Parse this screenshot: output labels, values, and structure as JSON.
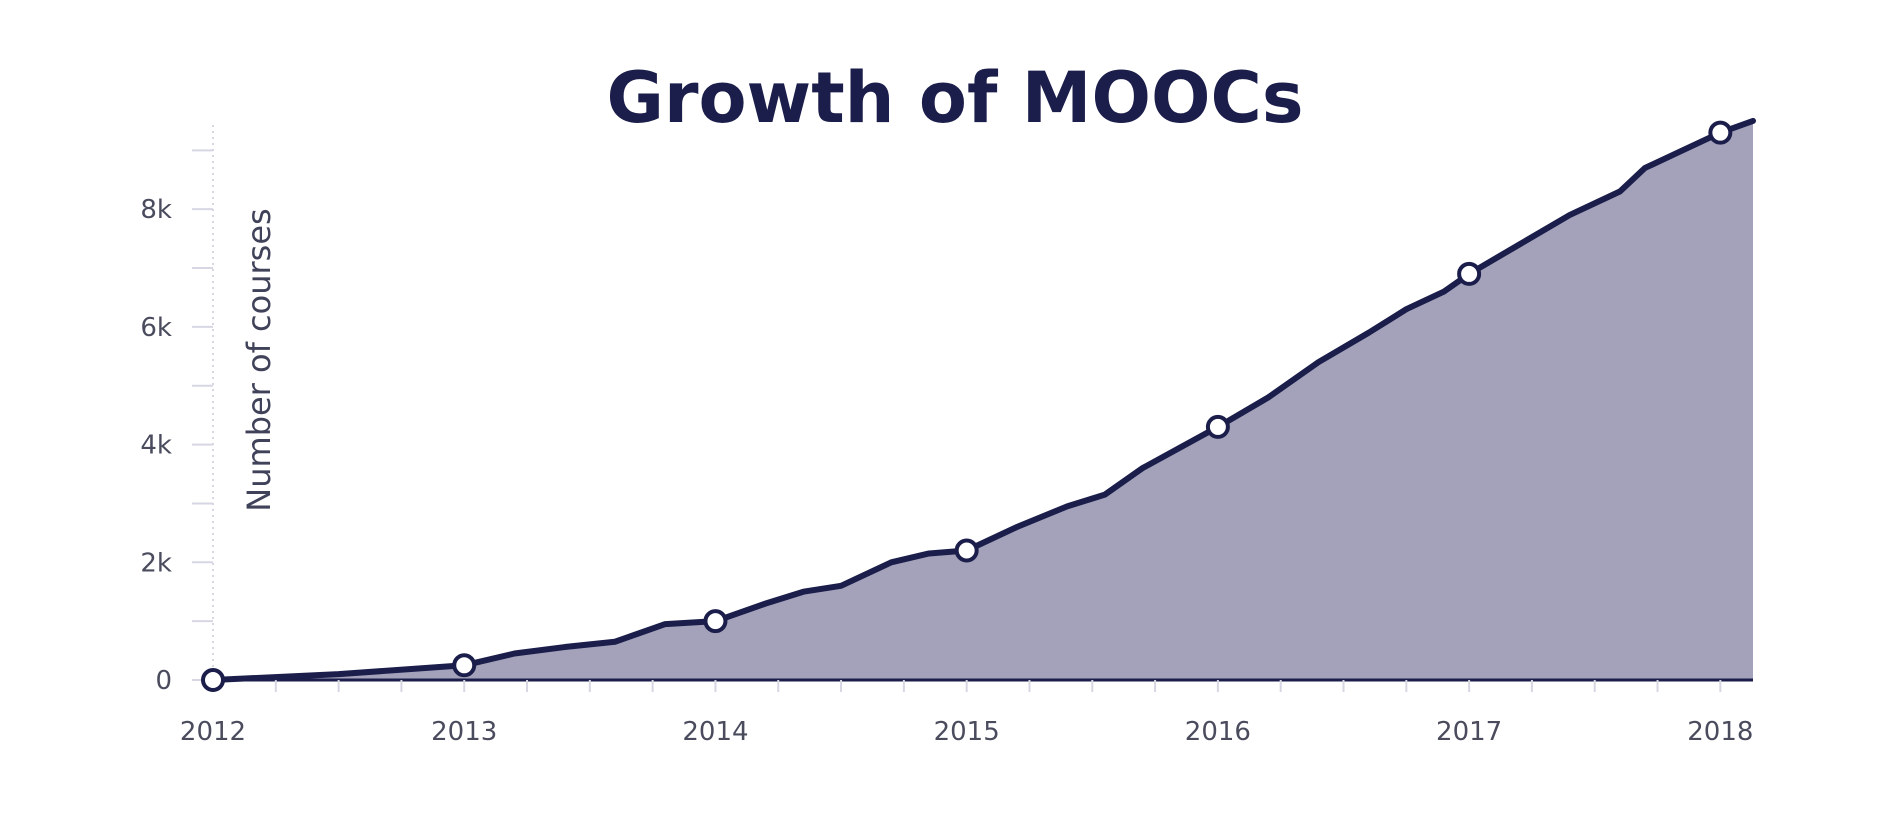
{
  "chart_data": {
    "type": "area",
    "title": "Growth of MOOCs",
    "xlabel": "",
    "ylabel": "Number of courses",
    "x_ticks": [
      "2012",
      "2013",
      "2014",
      "2015",
      "2016",
      "2017",
      "2018"
    ],
    "y_ticks": [
      "0",
      "2k",
      "4k",
      "6k",
      "8k"
    ],
    "ylim": [
      0,
      9600
    ],
    "xlim": [
      2012.0,
      2018.13
    ],
    "grid": false,
    "colors": {
      "line": "#1b1d4a",
      "fill": "#a3a2ba",
      "marker_fill": "#ffffff",
      "axis": "#c9cad8",
      "tick_mark": "#d6d7e3"
    },
    "series": [
      {
        "x": [
          2012.0,
          2012.5,
          2013.0,
          2013.2,
          2013.4,
          2013.6,
          2013.8,
          2014.0,
          2014.2,
          2014.35,
          2014.5,
          2014.7,
          2014.85,
          2015.0,
          2015.2,
          2015.4,
          2015.55,
          2015.7,
          2015.85,
          2016.0,
          2016.2,
          2016.4,
          2016.6,
          2016.75,
          2016.9,
          2017.0,
          2017.2,
          2017.4,
          2017.6,
          2017.7,
          2017.85,
          2018.0,
          2018.13
        ],
        "y": [
          0,
          100,
          250,
          450,
          560,
          650,
          950,
          1000,
          1300,
          1500,
          1600,
          2000,
          2150,
          2200,
          2600,
          2950,
          3150,
          3600,
          3950,
          4300,
          4800,
          5400,
          5900,
          6300,
          6600,
          6900,
          7400,
          7900,
          8300,
          8700,
          9000,
          9300,
          9500
        ]
      }
    ],
    "markers": {
      "x": [
        2012,
        2013,
        2014,
        2015,
        2016,
        2017,
        2018
      ],
      "y": [
        0,
        250,
        1000,
        2200,
        4300,
        6900,
        9300
      ]
    }
  }
}
